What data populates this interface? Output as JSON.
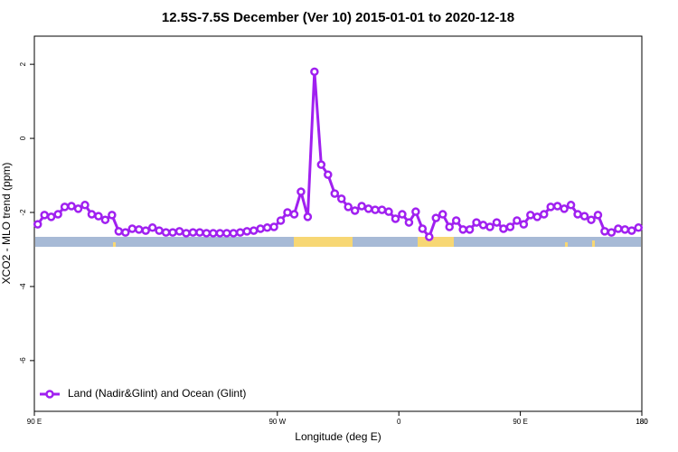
{
  "chart_data": {
    "type": "line",
    "title": "12.5S-7.5S December (Ver 10)   2015-01-01 to 2020-12-18",
    "x_label": "Longitude (deg E)",
    "y_label": "XCO2 - MLO trend (ppm)",
    "x": [
      92.5,
      97.5,
      102.5,
      107.5,
      112.5,
      117.5,
      122.5,
      127.5,
      132.5,
      137.5,
      142.5,
      147.5,
      152.5,
      157.5,
      162.5,
      167.5,
      172.5,
      177.5,
      182.5,
      187.5,
      192.5,
      197.5,
      202.5,
      207.5,
      212.5,
      217.5,
      222.5,
      227.5,
      232.5,
      237.5,
      242.5,
      247.5,
      252.5,
      257.5,
      262.5,
      267.5,
      272.5,
      277.5,
      282.5,
      287.5,
      292.5,
      297.5,
      302.5,
      307.5,
      312.5,
      317.5,
      322.5,
      327.5,
      332.5,
      337.5,
      342.5,
      347.5,
      352.5,
      357.5,
      362.5,
      367.5,
      372.5,
      377.5,
      382.5,
      387.5,
      392.5,
      397.5,
      402.5,
      407.5,
      412.5,
      417.5,
      422.5,
      427.5,
      432.5,
      437.5,
      442.5,
      447.5,
      452.5,
      457.5,
      462.5,
      467.5,
      472.5,
      477.5,
      482.5,
      487.5,
      492.5,
      497.5,
      502.5,
      507.5,
      512.5,
      517.5,
      522.5,
      527.5,
      532.5,
      537.5
    ],
    "series": [
      {
        "name": "Land (Nadir&Glint) and Ocean (Glint)",
        "color": "#a020f0",
        "values": [
          -2.32,
          -2.07,
          -2.12,
          -2.05,
          -1.85,
          -1.83,
          -1.9,
          -1.8,
          -2.05,
          -2.1,
          -2.2,
          -2.07,
          -2.51,
          -2.54,
          -2.44,
          -2.46,
          -2.49,
          -2.41,
          -2.49,
          -2.54,
          -2.54,
          -2.51,
          -2.56,
          -2.54,
          -2.54,
          -2.56,
          -2.56,
          -2.56,
          -2.56,
          -2.56,
          -2.54,
          -2.51,
          -2.49,
          -2.44,
          -2.41,
          -2.39,
          -2.22,
          -2.0,
          -2.05,
          -1.44,
          -2.12,
          1.8,
          -0.71,
          -0.98,
          -1.49,
          -1.63,
          -1.85,
          -1.95,
          -1.83,
          -1.9,
          -1.93,
          -1.93,
          -1.98,
          -2.17,
          -2.05,
          -2.27,
          -1.98,
          -2.44,
          -2.66,
          -2.15,
          -2.05,
          -2.39,
          -2.22,
          -2.46,
          -2.46,
          -2.27,
          -2.34,
          -2.39,
          -2.27,
          -2.44,
          -2.39,
          -2.22,
          -2.32,
          -2.07,
          -2.12,
          -2.05,
          -1.85,
          -1.83,
          -1.9,
          -1.8,
          -2.05,
          -2.1,
          -2.2,
          -2.07,
          -2.51,
          -2.54,
          -2.44,
          -2.46,
          -2.49,
          -2.41
        ]
      }
    ],
    "xlim": [
      90,
      540
    ],
    "xticks": [
      {
        "value": 90,
        "label": "90 E"
      },
      180,
      {
        "value": 270,
        "label": "90 W"
      },
      {
        "value": 360,
        "label": "0"
      },
      {
        "value": 450,
        "label": "90 E"
      },
      180
    ],
    "ylim": [
      -7.37,
      2.76
    ],
    "yticks": [
      -6,
      -4,
      -2,
      0,
      2
    ],
    "legend": "bottom-left"
  }
}
